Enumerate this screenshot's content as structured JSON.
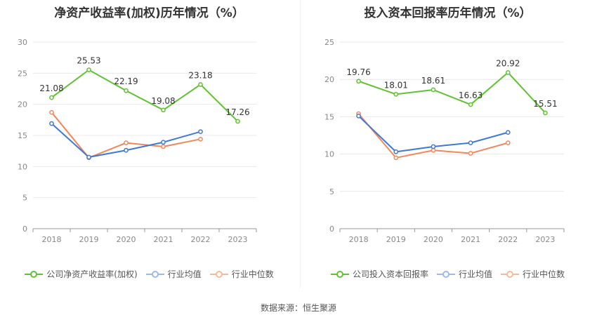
{
  "colors": {
    "company": "#5fc232",
    "industry_avg": "#3f79d8",
    "industry_median": "#f4875a",
    "grid": "#e8e8e8",
    "axis": "#888888"
  },
  "source": "数据来源：恒生聚源",
  "chart_data": [
    {
      "type": "line",
      "title": "净资产收益率(加权)历年情况（%）",
      "categories": [
        "2018",
        "2019",
        "2020",
        "2021",
        "2022",
        "2023"
      ],
      "ylim": [
        0,
        30
      ],
      "yticks": [
        0,
        5,
        10,
        15,
        20,
        25,
        30
      ],
      "tick_labels": [
        "0",
        "5",
        "10",
        "15",
        "20",
        "25",
        "30"
      ],
      "series": [
        {
          "name": "公司净资产收益率(加权)",
          "key": "company",
          "values": [
            21.08,
            25.53,
            22.19,
            19.08,
            23.18,
            17.26
          ],
          "labels": [
            "21.08",
            "25.53",
            "22.19",
            "19.08",
            "23.18",
            "17.26"
          ]
        },
        {
          "name": "行业均值",
          "key": "industry_avg",
          "values": [
            16.9,
            11.5,
            12.6,
            13.9,
            15.6,
            null
          ]
        },
        {
          "name": "行业中位数",
          "key": "industry_median",
          "values": [
            18.7,
            11.4,
            13.8,
            13.2,
            14.4,
            null
          ]
        }
      ]
    },
    {
      "type": "line",
      "title": "投入资本回报率历年情况（%）",
      "categories": [
        "2018",
        "2019",
        "2020",
        "2021",
        "2022",
        "2023"
      ],
      "ylim": [
        0,
        25
      ],
      "yticks": [
        0,
        5,
        10,
        15,
        20,
        25
      ],
      "tick_labels": [
        "0",
        "5",
        "10",
        "15",
        "20",
        "25"
      ],
      "series": [
        {
          "name": "公司投入资本回报率",
          "key": "company",
          "values": [
            19.76,
            18.01,
            18.61,
            16.63,
            20.92,
            15.51
          ],
          "labels": [
            "19.76",
            "18.01",
            "18.61",
            "16.63",
            "20.92",
            "15.51"
          ]
        },
        {
          "name": "行业均值",
          "key": "industry_avg",
          "values": [
            15.1,
            10.3,
            11.0,
            11.5,
            12.9,
            null
          ]
        },
        {
          "name": "行业中位数",
          "key": "industry_median",
          "values": [
            15.4,
            9.5,
            10.5,
            10.1,
            11.5,
            null
          ]
        }
      ]
    }
  ]
}
